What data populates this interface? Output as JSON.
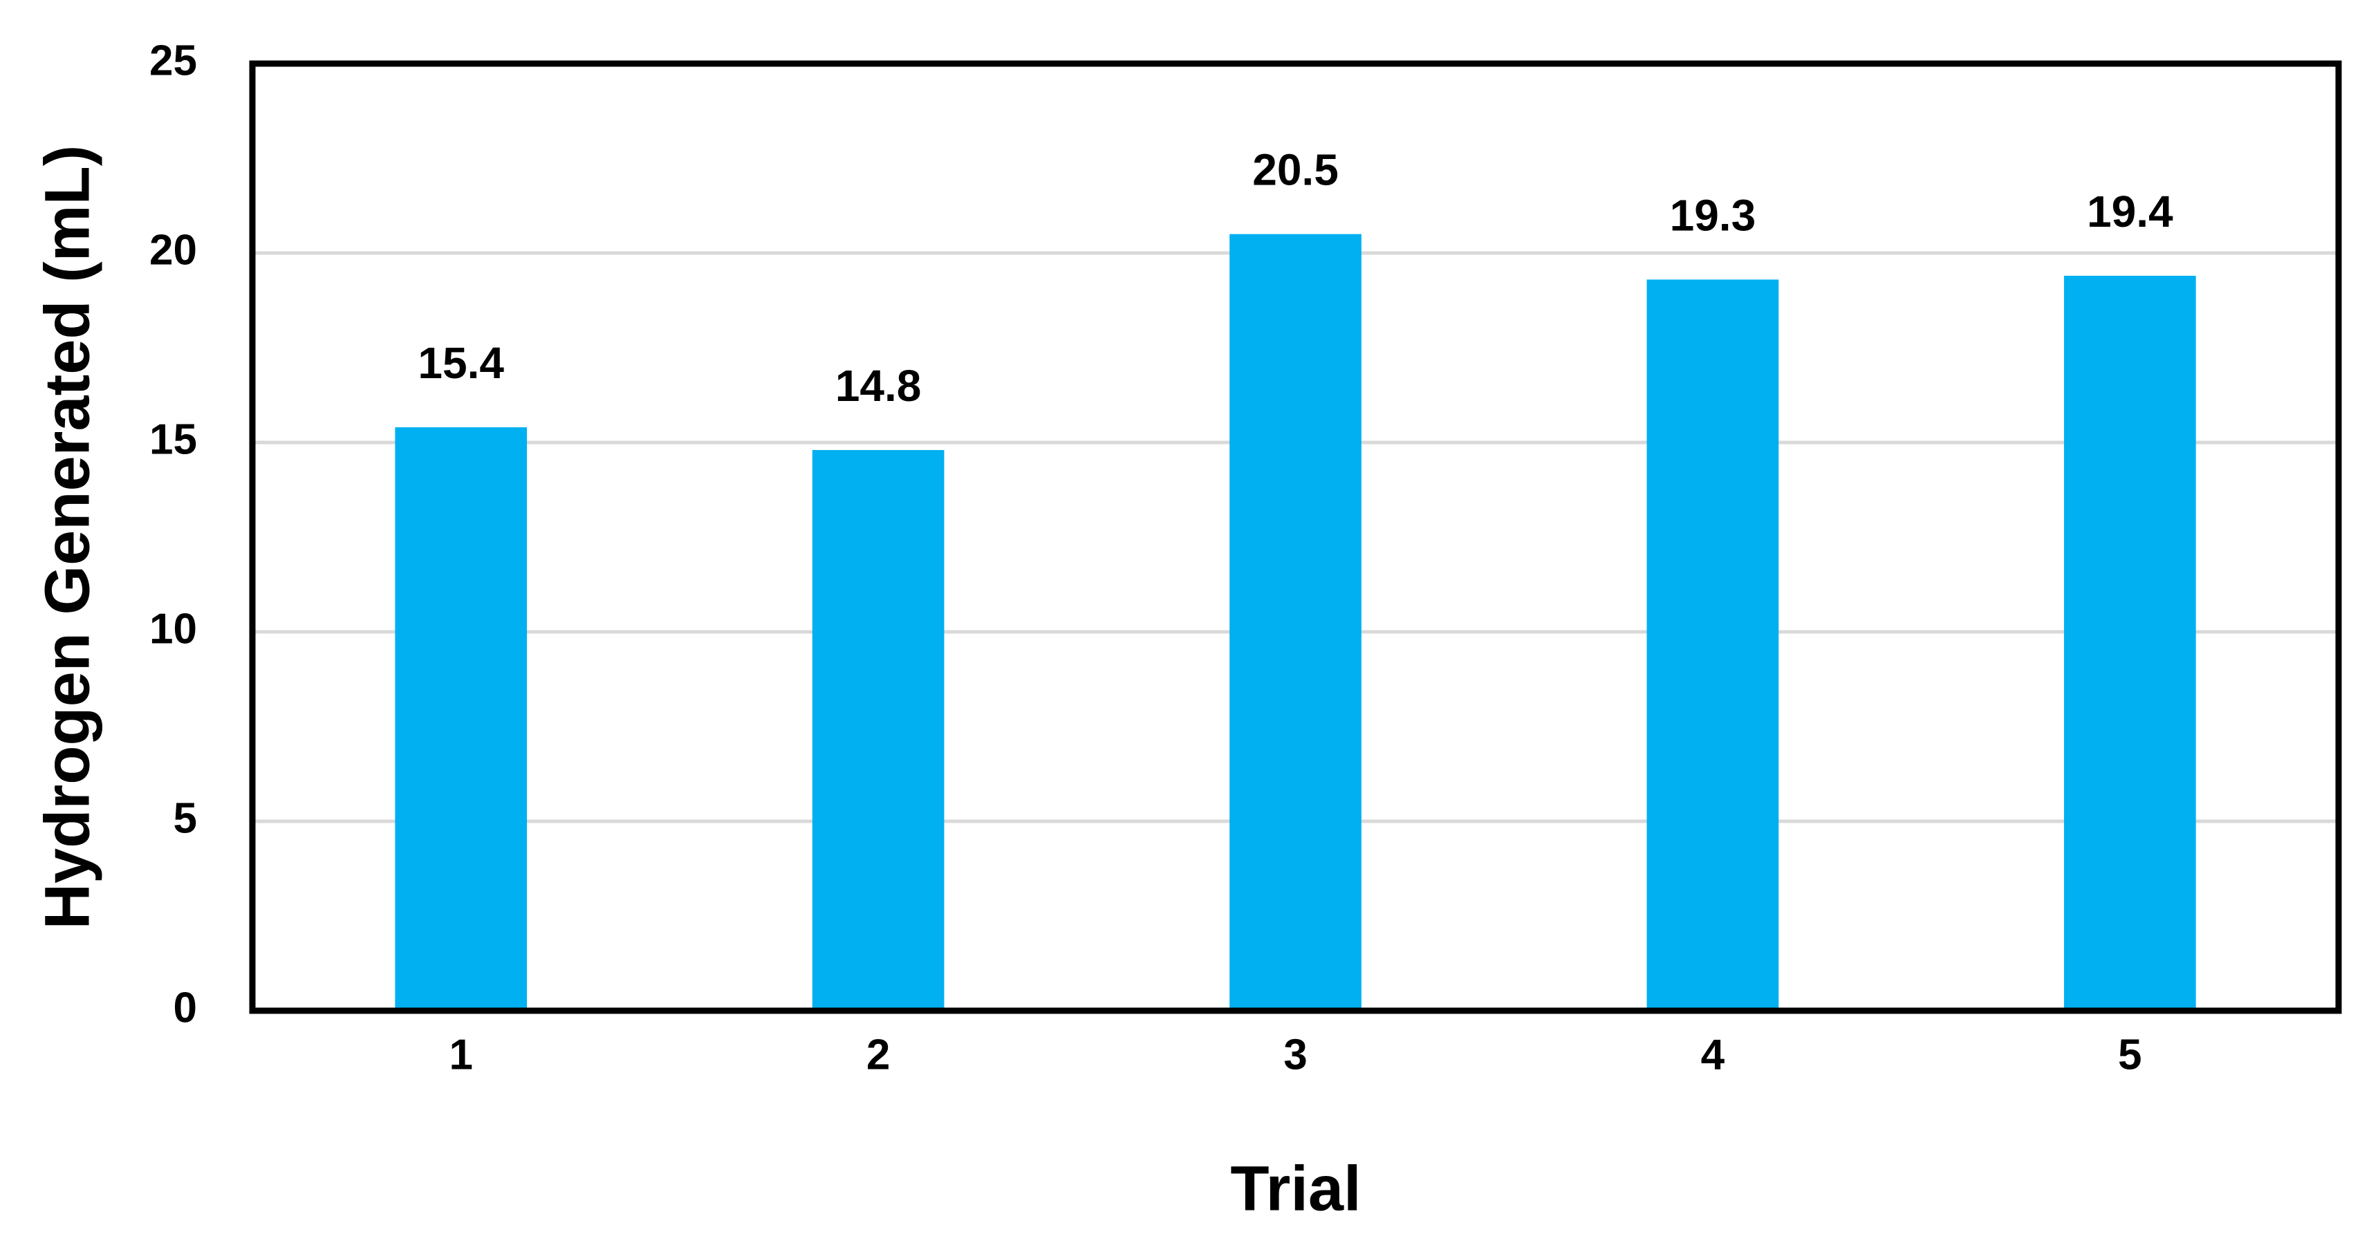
{
  "chart_data": {
    "type": "bar",
    "x_label": "Trial",
    "y_label": "Hydrogen Generated (mL)",
    "categories": [
      "1",
      "2",
      "3",
      "4",
      "5"
    ],
    "values": [
      15.4,
      14.8,
      20.5,
      19.3,
      19.4
    ],
    "color": "#00b0f0",
    "ylim": [
      0,
      25
    ],
    "yticks": [
      0,
      5,
      10,
      15,
      20,
      25
    ],
    "grid": true
  }
}
